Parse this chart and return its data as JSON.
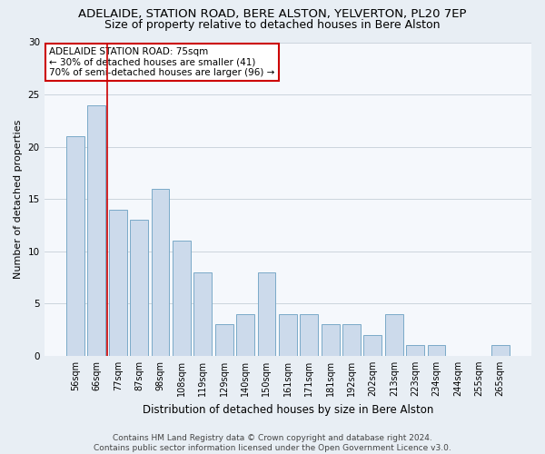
{
  "title": "ADELAIDE, STATION ROAD, BERE ALSTON, YELVERTON, PL20 7EP",
  "subtitle": "Size of property relative to detached houses in Bere Alston",
  "xlabel": "Distribution of detached houses by size in Bere Alston",
  "ylabel": "Number of detached properties",
  "categories": [
    "56sqm",
    "66sqm",
    "77sqm",
    "87sqm",
    "98sqm",
    "108sqm",
    "119sqm",
    "129sqm",
    "140sqm",
    "150sqm",
    "161sqm",
    "171sqm",
    "181sqm",
    "192sqm",
    "202sqm",
    "213sqm",
    "223sqm",
    "234sqm",
    "244sqm",
    "255sqm",
    "265sqm"
  ],
  "values": [
    21,
    24,
    14,
    13,
    16,
    11,
    8,
    3,
    4,
    8,
    4,
    4,
    3,
    3,
    2,
    4,
    1,
    1,
    0,
    0,
    1
  ],
  "bar_color": "#ccdaeb",
  "bar_edge_color": "#7aaac8",
  "ylim": [
    0,
    30
  ],
  "yticks": [
    0,
    5,
    10,
    15,
    20,
    25,
    30
  ],
  "annotation_line1": "ADELAIDE STATION ROAD: 75sqm",
  "annotation_line2": "← 30% of detached houses are smaller (41)",
  "annotation_line3": "70% of semi-detached houses are larger (96) →",
  "vline_bar_index": 2,
  "vline_color": "#cc0000",
  "footer_line1": "Contains HM Land Registry data © Crown copyright and database right 2024.",
  "footer_line2": "Contains public sector information licensed under the Open Government Licence v3.0.",
  "background_color": "#e8eef4",
  "plot_background_color": "#f5f8fc",
  "grid_color": "#c5cfd8",
  "title_fontsize": 9.5,
  "subtitle_fontsize": 9,
  "xlabel_fontsize": 8.5,
  "ylabel_fontsize": 8,
  "tick_fontsize": 7,
  "annot_fontsize": 7.5,
  "footer_fontsize": 6.5
}
